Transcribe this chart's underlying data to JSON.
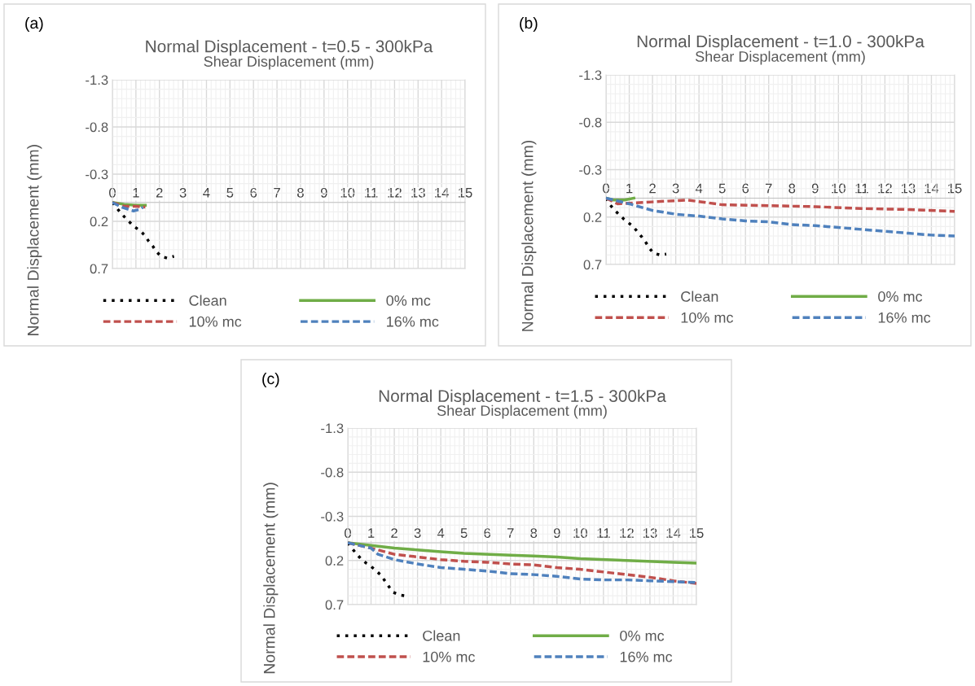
{
  "chart_data": [
    {
      "type": "line",
      "title": "Normal Displacement - t=0.5 - 300kPa",
      "xlabel": "Shear Displacement (mm)",
      "ylabel": "Normal Displacement (mm)",
      "annotations": [
        "(a)"
      ],
      "xlim": [
        0,
        15
      ],
      "xticks": [
        0,
        1,
        2,
        3,
        4,
        5,
        6,
        7,
        8,
        9,
        10,
        11,
        12,
        13,
        14,
        15
      ],
      "ylim": [
        0.7,
        -1.3
      ],
      "yticks": [
        -1.3,
        -0.8,
        -0.3,
        0.2,
        0.7
      ],
      "grid": true,
      "legend": "bottom",
      "marker": "none",
      "series": [
        {
          "name": "Clean",
          "color": "#000000",
          "line_style": "dotted",
          "x": [
            0,
            0.16,
            0.35,
            0.54,
            0.74,
            0.95,
            1.18,
            1.38,
            1.54,
            1.71,
            1.87,
            2.06,
            2.34,
            2.62
          ],
          "values": [
            0,
            0.05,
            0.11,
            0.16,
            0.21,
            0.26,
            0.3,
            0.35,
            0.41,
            0.46,
            0.52,
            0.57,
            0.59,
            0.57
          ]
        },
        {
          "name": "0% mc",
          "color": "#70ad47",
          "line_style": "solid",
          "x": [
            0,
            0.5,
            1,
            1.4
          ],
          "values": [
            0,
            0.02,
            0.03,
            0.03
          ]
        },
        {
          "name": "10% mc",
          "color": "#c0504d",
          "line_style": "dashed",
          "x": [
            0,
            0.5,
            1,
            1.4
          ],
          "values": [
            0,
            0.04,
            0.04,
            0.05
          ]
        },
        {
          "name": "16% mc",
          "color": "#4f81bd",
          "line_style": "dashed",
          "x": [
            0,
            0.4,
            0.9,
            1.2,
            1.3
          ],
          "values": [
            0,
            0.05,
            0.09,
            0.07,
            0.05
          ]
        }
      ]
    },
    {
      "type": "line",
      "title": "Normal Displacement - t=1.0 - 300kPa",
      "xlabel": "Shear Displacement (mm)",
      "ylabel": "Normal Displacement (mm)",
      "annotations": [
        "(b)"
      ],
      "xlim": [
        0,
        15
      ],
      "xticks": [
        0,
        1,
        2,
        3,
        4,
        5,
        6,
        7,
        8,
        9,
        10,
        11,
        12,
        13,
        14,
        15
      ],
      "ylim": [
        0.7,
        -1.3
      ],
      "yticks": [
        -1.3,
        -0.8,
        -0.3,
        0.2,
        0.7
      ],
      "grid": true,
      "legend": "bottom",
      "marker": "none",
      "series": [
        {
          "name": "Clean",
          "color": "#000000",
          "line_style": "dotted",
          "x": [
            0,
            0.14,
            0.34,
            0.55,
            0.76,
            1.17,
            1.37,
            1.54,
            1.72,
            1.87,
            2.04,
            2.33,
            2.59
          ],
          "values": [
            0,
            0.06,
            0.12,
            0.17,
            0.22,
            0.3,
            0.36,
            0.41,
            0.47,
            0.53,
            0.58,
            0.6,
            0.59
          ]
        },
        {
          "name": "0% mc",
          "color": "#70ad47",
          "line_style": "solid",
          "x": [
            0,
            0.3,
            0.8,
            1.2
          ],
          "values": [
            0,
            0.02,
            0.02,
            0.0
          ]
        },
        {
          "name": "10% mc",
          "color": "#c0504d",
          "line_style": "dashed",
          "x": [
            0,
            0.5,
            2,
            3.5,
            5,
            7,
            9,
            11,
            13,
            15
          ],
          "values": [
            0,
            0.06,
            0.04,
            0.02,
            0.07,
            0.08,
            0.09,
            0.11,
            0.12,
            0.14
          ]
        },
        {
          "name": "16% mc",
          "color": "#4f81bd",
          "line_style": "dashed",
          "x": [
            0,
            1,
            2,
            3,
            4,
            5,
            6,
            7,
            8,
            9,
            10,
            11,
            12,
            13,
            14,
            15
          ],
          "values": [
            0,
            0.06,
            0.13,
            0.17,
            0.19,
            0.22,
            0.24,
            0.25,
            0.28,
            0.29,
            0.31,
            0.33,
            0.35,
            0.37,
            0.39,
            0.4
          ]
        }
      ]
    },
    {
      "type": "line",
      "title": "Normal Displacement - t=1.5 - 300kPa",
      "xlabel": "Shear Displacement (mm)",
      "ylabel": "Normal Displacement (mm)",
      "annotations": [
        "(c)"
      ],
      "xlim": [
        0,
        15
      ],
      "xticks": [
        0,
        1,
        2,
        3,
        4,
        5,
        6,
        7,
        8,
        9,
        10,
        11,
        12,
        13,
        14,
        15
      ],
      "ylim": [
        0.7,
        -1.3
      ],
      "yticks": [
        -1.3,
        -0.8,
        -0.3,
        0.2,
        0.7
      ],
      "grid": true,
      "legend": "bottom",
      "marker": "none",
      "series": [
        {
          "name": "Clean",
          "color": "#000000",
          "line_style": "dotted",
          "x": [
            0,
            0.17,
            0.36,
            0.56,
            0.79,
            1.01,
            1.23,
            1.44,
            1.62,
            1.78,
            1.96,
            2.21,
            2.48
          ],
          "values": [
            0,
            0.06,
            0.12,
            0.18,
            0.23,
            0.27,
            0.32,
            0.37,
            0.44,
            0.5,
            0.56,
            0.59,
            0.6
          ]
        },
        {
          "name": "0% mc",
          "color": "#70ad47",
          "line_style": "solid",
          "x": [
            0,
            1,
            2,
            3,
            4,
            5,
            7,
            8,
            9,
            10,
            12,
            14,
            15
          ],
          "values": [
            0,
            0.03,
            0.06,
            0.08,
            0.1,
            0.12,
            0.14,
            0.15,
            0.16,
            0.18,
            0.2,
            0.22,
            0.23
          ]
        },
        {
          "name": "10% mc",
          "color": "#c0504d",
          "line_style": "dashed",
          "x": [
            0,
            1,
            2,
            3,
            4,
            5,
            6,
            7,
            8,
            9,
            10,
            11,
            12,
            13,
            14,
            15
          ],
          "values": [
            0,
            0.06,
            0.13,
            0.16,
            0.19,
            0.21,
            0.22,
            0.24,
            0.25,
            0.28,
            0.3,
            0.33,
            0.36,
            0.39,
            0.43,
            0.46
          ]
        },
        {
          "name": "16% mc",
          "color": "#4f81bd",
          "line_style": "dashed",
          "x": [
            0,
            1,
            1.3,
            2,
            3,
            4,
            5,
            6,
            7,
            8,
            9,
            10,
            11,
            12,
            13,
            14,
            15
          ],
          "values": [
            0,
            0.06,
            0.13,
            0.19,
            0.24,
            0.28,
            0.3,
            0.32,
            0.35,
            0.36,
            0.38,
            0.41,
            0.42,
            0.42,
            0.43,
            0.44,
            0.45
          ]
        }
      ]
    }
  ]
}
